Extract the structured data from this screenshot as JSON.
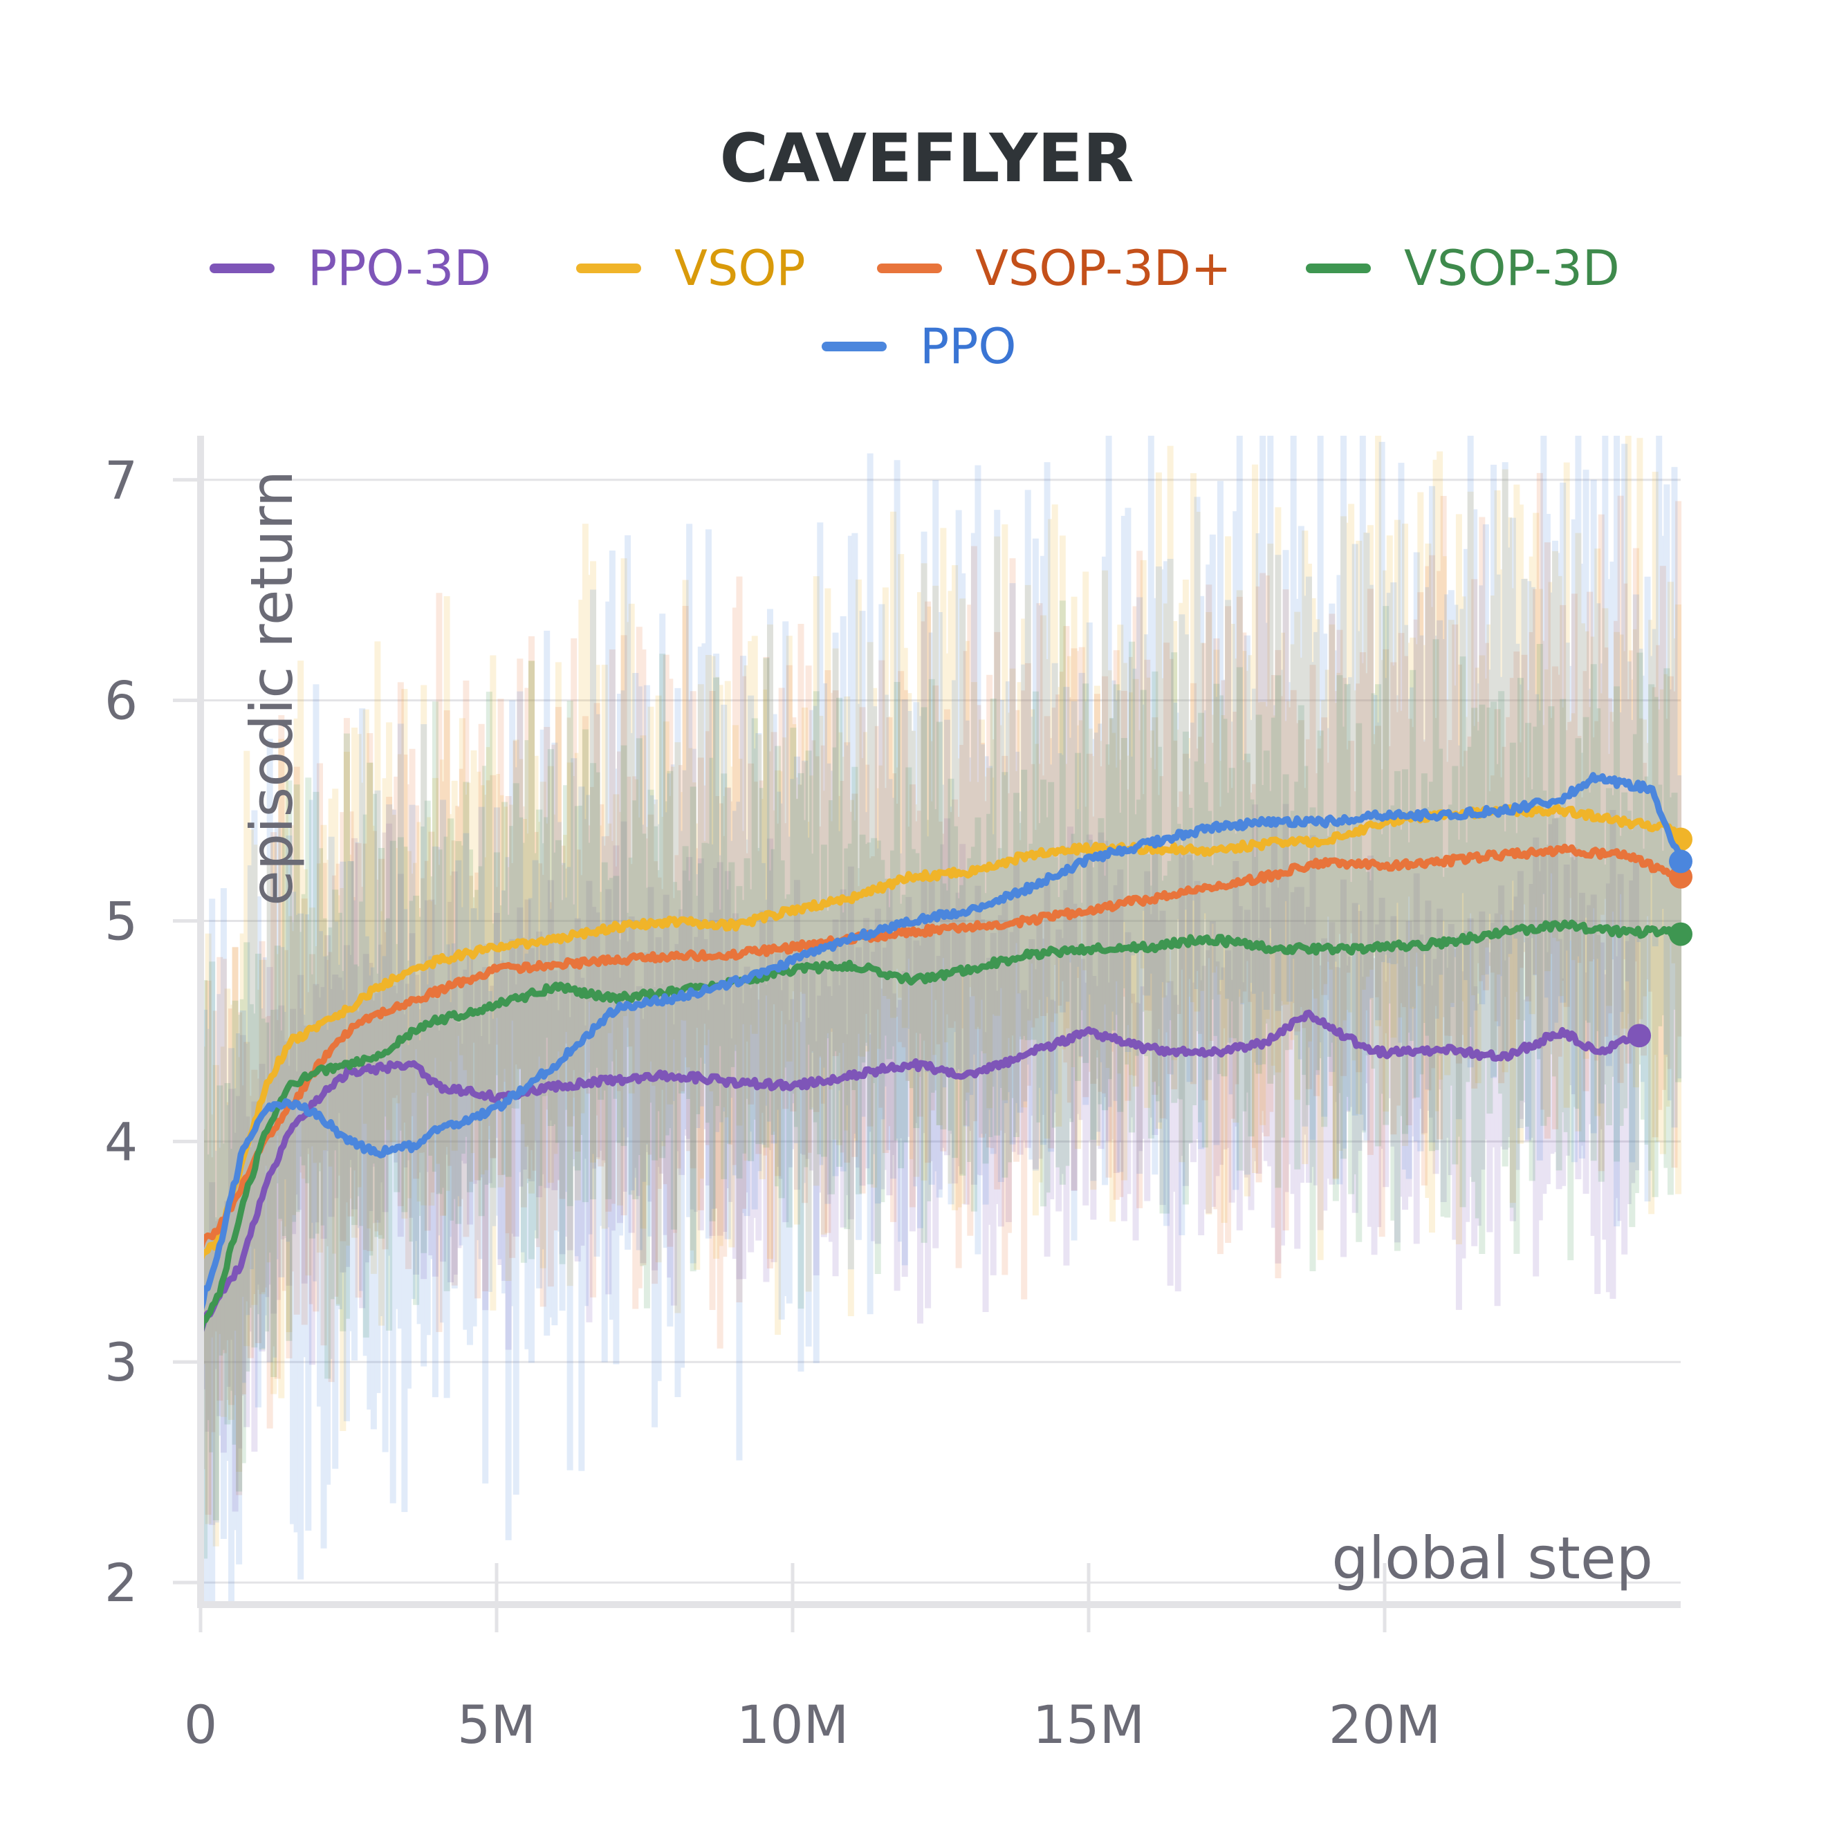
{
  "chart_data": {
    "type": "line",
    "title": "CAVEFLYER",
    "xlabel": "global step",
    "ylabel": "episodic return",
    "xlim": [
      0,
      25000000
    ],
    "ylim": [
      1.9,
      7.2
    ],
    "x_ticks": [
      0,
      5000000,
      10000000,
      15000000,
      20000000
    ],
    "x_tick_labels": [
      "0",
      "5M",
      "10M",
      "15M",
      "20M"
    ],
    "y_ticks": [
      2,
      3,
      4,
      5,
      6,
      7
    ],
    "y_tick_labels": [
      "2",
      "3",
      "4",
      "5",
      "6",
      "7"
    ],
    "grid": true,
    "legend_position": "top",
    "series": [
      {
        "name": "PPO-3D",
        "color": "#7e55b8",
        "label_color": "#7e55b8",
        "raw_band": [
          2.6,
          4.4
        ],
        "x": [
          0,
          300000,
          700000,
          1100000,
          1500000,
          2000000,
          2500000,
          3000000,
          3600000,
          4000000,
          5000000,
          6000000,
          7000000,
          8000000,
          9000000,
          10000000,
          11000000,
          12000000,
          13000000,
          14000000,
          15000000,
          16000000,
          17000000,
          18000000,
          18700000,
          19500000,
          20000000,
          21000000,
          22000000,
          23000000,
          23600000,
          24300000
        ],
        "values": [
          3.15,
          3.3,
          3.45,
          3.8,
          4.05,
          4.2,
          4.32,
          4.33,
          4.35,
          4.25,
          4.2,
          4.25,
          4.28,
          4.3,
          4.27,
          4.25,
          4.3,
          4.35,
          4.3,
          4.4,
          4.5,
          4.42,
          4.4,
          4.45,
          4.58,
          4.45,
          4.4,
          4.42,
          4.38,
          4.5,
          4.4,
          4.48
        ]
      },
      {
        "name": "VSOP",
        "color": "#f0b429",
        "label_color": "#d99a0a",
        "raw_band": [
          3.6,
          6.4
        ],
        "x": [
          0,
          300000,
          700000,
          1100000,
          1500000,
          2000000,
          2500000,
          3000000,
          3600000,
          4000000,
          5000000,
          6000000,
          7000000,
          8000000,
          9000000,
          10000000,
          11000000,
          12000000,
          13000000,
          14000000,
          15000000,
          16000000,
          17000000,
          18000000,
          19000000,
          20000000,
          21000000,
          22000000,
          23000000,
          24000000,
          24800000,
          25000000
        ],
        "values": [
          3.48,
          3.55,
          3.9,
          4.25,
          4.45,
          4.52,
          4.6,
          4.7,
          4.78,
          4.82,
          4.88,
          4.92,
          4.97,
          5.0,
          4.98,
          5.05,
          5.1,
          5.2,
          5.22,
          5.3,
          5.33,
          5.33,
          5.32,
          5.35,
          5.36,
          5.45,
          5.48,
          5.5,
          5.5,
          5.45,
          5.42,
          5.37
        ]
      },
      {
        "name": "VSOP-3D+",
        "color": "#e8743b",
        "label_color": "#c4501a",
        "raw_band": [
          3.5,
          6.2
        ],
        "x": [
          0,
          300000,
          700000,
          1100000,
          1500000,
          2000000,
          2500000,
          3000000,
          3600000,
          4000000,
          5000000,
          6000000,
          7000000,
          8000000,
          9000000,
          10000000,
          11000000,
          12000000,
          13000000,
          14000000,
          15000000,
          16000000,
          17000000,
          18000000,
          19000000,
          20000000,
          21000000,
          22000000,
          23000000,
          24000000,
          24800000,
          25000000
        ],
        "values": [
          3.53,
          3.6,
          3.8,
          4.0,
          4.15,
          4.35,
          4.5,
          4.58,
          4.64,
          4.68,
          4.78,
          4.8,
          4.82,
          4.84,
          4.85,
          4.88,
          4.92,
          4.95,
          4.97,
          5.0,
          5.05,
          5.1,
          5.15,
          5.2,
          5.27,
          5.25,
          5.27,
          5.3,
          5.32,
          5.3,
          5.22,
          5.2
        ]
      },
      {
        "name": "VSOP-3D",
        "color": "#3e9651",
        "label_color": "#3e8a4c",
        "raw_band": [
          3.6,
          5.9
        ],
        "x": [
          0,
          300000,
          700000,
          1100000,
          1500000,
          2000000,
          2500000,
          3000000,
          3600000,
          4000000,
          5000000,
          6000000,
          7000000,
          8000000,
          9000000,
          10000000,
          11000000,
          12000000,
          13000000,
          14000000,
          15000000,
          16000000,
          17000000,
          18000000,
          19000000,
          20000000,
          21000000,
          22000000,
          23000000,
          24000000,
          24800000,
          25000000
        ],
        "values": [
          3.15,
          3.3,
          3.7,
          4.05,
          4.25,
          4.32,
          4.35,
          4.38,
          4.5,
          4.55,
          4.62,
          4.7,
          4.65,
          4.68,
          4.72,
          4.78,
          4.8,
          4.73,
          4.78,
          4.85,
          4.87,
          4.88,
          4.92,
          4.88,
          4.87,
          4.88,
          4.9,
          4.95,
          4.98,
          4.95,
          4.95,
          4.94
        ]
      },
      {
        "name": "PPO",
        "color": "#4b86dd",
        "label_color": "#3a75d4",
        "raw_band": [
          3.4,
          6.6
        ],
        "x": [
          0,
          300000,
          700000,
          1100000,
          1500000,
          2000000,
          2500000,
          3000000,
          3600000,
          4000000,
          5000000,
          6000000,
          7000000,
          8000000,
          9000000,
          10000000,
          11000000,
          12000000,
          13000000,
          14000000,
          15000000,
          16000000,
          17000000,
          18000000,
          19000000,
          20000000,
          21000000,
          22000000,
          23000000,
          23500000,
          24500000,
          25000000
        ],
        "values": [
          3.25,
          3.5,
          3.95,
          4.15,
          4.18,
          4.12,
          4.0,
          3.95,
          3.98,
          4.05,
          4.15,
          4.35,
          4.6,
          4.65,
          4.72,
          4.82,
          4.92,
          5.0,
          5.05,
          5.15,
          5.28,
          5.35,
          5.42,
          5.45,
          5.45,
          5.48,
          5.48,
          5.5,
          5.55,
          5.65,
          5.6,
          5.27
        ]
      }
    ]
  }
}
